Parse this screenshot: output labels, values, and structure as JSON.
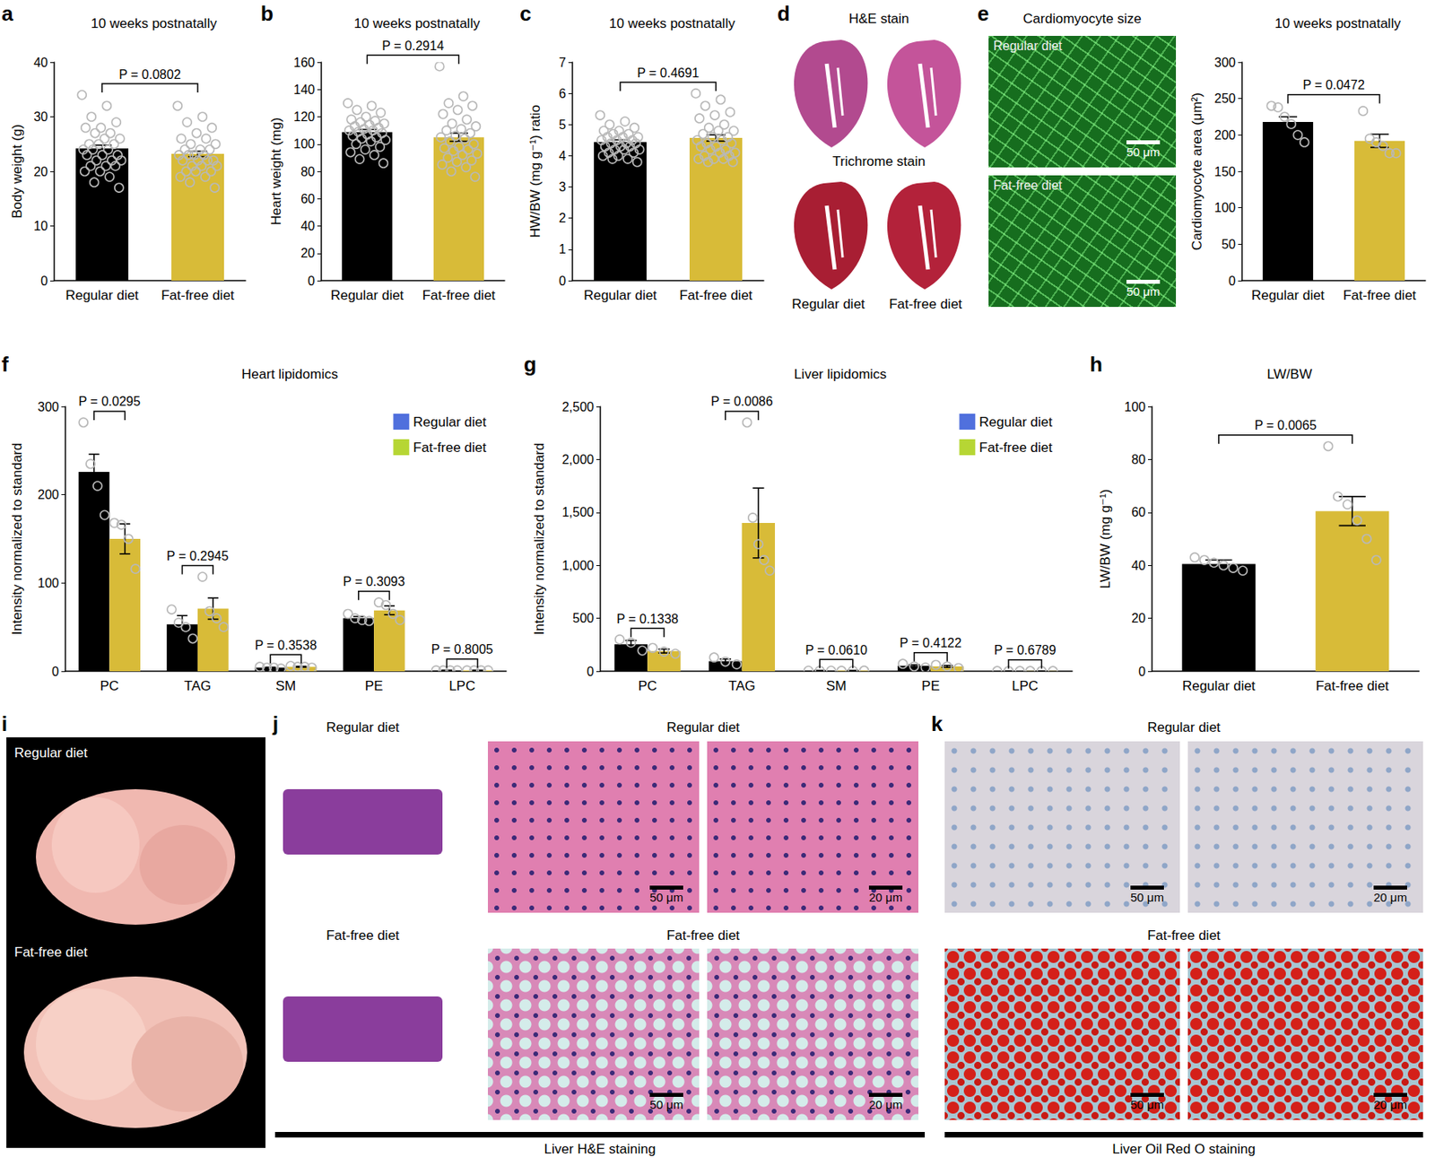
{
  "chart_data": [
    {
      "panel": "a",
      "type": "bar",
      "title": "10 weeks postnatally",
      "categories": [
        "Regular diet",
        "Fat-free diet"
      ],
      "values": [
        24.2,
        23.2
      ],
      "errors": [
        0.6,
        0.5
      ],
      "points": [
        [
          34,
          32,
          30,
          29,
          28,
          28,
          27,
          27,
          26,
          26,
          25,
          25,
          25,
          24,
          24,
          24,
          23,
          23,
          23,
          22,
          22,
          22,
          21,
          21,
          21,
          20,
          20,
          19,
          18,
          17
        ],
        [
          32,
          30,
          29,
          28,
          27,
          26,
          26,
          25,
          25,
          24,
          24,
          24,
          23,
          23,
          23,
          23,
          22,
          22,
          22,
          22,
          21,
          21,
          21,
          20,
          20,
          20,
          19,
          19,
          18,
          17
        ]
      ],
      "colors": [
        "#000000",
        "#d8bb38"
      ],
      "ylabel": "Body weight (g)",
      "ylim": [
        0,
        40
      ],
      "yticks": [
        0,
        10,
        20,
        30,
        40
      ],
      "grid": false,
      "annotations": [
        "P = 0.0802"
      ]
    },
    {
      "panel": "b",
      "type": "bar",
      "title": "10 weeks postnatally",
      "categories": [
        "Regular diet",
        "Fat-free diet"
      ],
      "values": [
        108.7,
        105
      ],
      "errors": [
        2,
        3
      ],
      "points": [
        [
          130,
          128,
          125,
          123,
          120,
          118,
          117,
          116,
          115,
          114,
          113,
          112,
          111,
          110,
          110,
          109,
          108,
          107,
          106,
          105,
          104,
          103,
          102,
          100,
          98,
          96,
          94,
          92,
          89,
          86
        ],
        [
          157,
          135,
          130,
          128,
          125,
          122,
          118,
          115,
          113,
          111,
          110,
          108,
          106,
          105,
          104,
          102,
          100,
          98,
          97,
          96,
          95,
          93,
          92,
          90,
          88,
          87,
          85,
          83,
          80,
          76
        ]
      ],
      "colors": [
        "#000000",
        "#d8bb38"
      ],
      "ylabel": "Heart weight (mg)",
      "ylim": [
        0,
        160
      ],
      "yticks": [
        0,
        20,
        40,
        60,
        80,
        100,
        120,
        140,
        160
      ],
      "grid": false,
      "annotations": [
        "P = 0.2914"
      ]
    },
    {
      "panel": "c",
      "type": "bar",
      "title": "10 weeks postnatally",
      "categories": [
        "Regular diet",
        "Fat-free diet"
      ],
      "values": [
        4.44,
        4.57
      ],
      "errors": [
        0.07,
        0.1
      ],
      "points": [
        [
          5.3,
          5.1,
          5.0,
          4.9,
          4.8,
          4.8,
          4.7,
          4.7,
          4.6,
          4.6,
          4.6,
          4.5,
          4.5,
          4.5,
          4.4,
          4.4,
          4.4,
          4.3,
          4.3,
          4.3,
          4.2,
          4.2,
          4.2,
          4.1,
          4.1,
          4.0,
          4.0,
          3.9,
          3.9,
          3.8
        ],
        [
          6.0,
          5.8,
          5.6,
          5.4,
          5.3,
          5.2,
          5.0,
          4.9,
          4.8,
          4.8,
          4.7,
          4.6,
          4.6,
          4.5,
          4.5,
          4.4,
          4.4,
          4.3,
          4.3,
          4.2,
          4.2,
          4.1,
          4.1,
          4.0,
          4.0,
          3.9,
          3.9,
          3.9,
          3.8,
          3.8
        ]
      ],
      "colors": [
        "#000000",
        "#d8bb38"
      ],
      "ylabel": "HW/BW (mg g⁻¹) ratio",
      "ylim": [
        0,
        7
      ],
      "yticks": [
        0,
        1,
        2,
        3,
        4,
        5,
        6,
        7
      ],
      "grid": false,
      "annotations": [
        "P = 0.4691"
      ]
    },
    {
      "type": "bar",
      "title": "10 weeks postnatally",
      "categories": [
        "Regular diet",
        "Fat-free diet"
      ],
      "values": [
        218,
        192
      ],
      "errors": [
        7,
        9
      ],
      "points": [
        [
          240,
          238,
          225,
          215,
          200,
          190
        ],
        [
          233,
          195,
          190,
          185,
          175,
          175
        ]
      ],
      "colors": [
        "#000000",
        "#d8bb38"
      ],
      "ylabel": "Cardiomyocyte area (μm²)",
      "ylim": [
        0,
        300
      ],
      "yticks": [
        0,
        50,
        100,
        150,
        200,
        250,
        300
      ],
      "grid": false,
      "annotations": [
        "P = 0.0472"
      ]
    },
    {
      "panel": "f",
      "type": "bar",
      "title": "Heart lipidomics",
      "categories": [
        "PC",
        "TAG",
        "SM",
        "PE",
        "LPC"
      ],
      "series": [
        {
          "name": "Regular diet",
          "color": "#000000",
          "values": [
            226,
            53,
            4,
            60,
            1
          ],
          "errors": [
            20,
            10,
            0.5,
            2,
            0.2
          ],
          "points": [
            [
              282,
              235,
              210,
              177
            ],
            [
              70,
              55,
              50,
              37
            ],
            [
              5,
              4,
              4,
              3
            ],
            [
              65,
              60,
              58,
              57
            ],
            [
              1,
              1,
              1,
              1
            ]
          ]
        },
        {
          "name": "Fat-free diet",
          "color": "#d8bb38",
          "values": [
            150,
            71,
            5,
            69,
            1
          ],
          "errors": [
            17,
            12,
            0.5,
            5,
            0.2
          ],
          "points": [
            [
              168,
              166,
              150,
              116
            ],
            [
              107,
              68,
              60,
              50
            ],
            [
              6,
              5,
              5,
              4
            ],
            [
              78,
              75,
              65,
              58
            ],
            [
              1,
              1,
              1,
              1
            ]
          ]
        }
      ],
      "ylabel": "Intensity normalized to standard",
      "ylim": [
        0,
        300
      ],
      "yticks": [
        0,
        100,
        200,
        300
      ],
      "grid": false,
      "legend": "top-right",
      "annotations": [
        "P = 0.0295",
        "P = 0.2945",
        "P = 0.3538",
        "P = 0.3093",
        "P = 0.8005"
      ]
    },
    {
      "panel": "g",
      "type": "bar",
      "title": "Liver lipidomics",
      "categories": [
        "PC",
        "TAG",
        "SM",
        "PE",
        "LPC"
      ],
      "series": [
        {
          "name": "Regular diet",
          "color": "#000000",
          "values": [
            255,
            95,
            5,
            50,
            2
          ],
          "errors": [
            35,
            20,
            1,
            10,
            0.5
          ],
          "points": [
            [
              300,
              270,
              195
            ],
            [
              130,
              90,
              65
            ],
            [
              5,
              5,
              5
            ],
            [
              70,
              45,
              35
            ],
            [
              2,
              2,
              2
            ]
          ]
        },
        {
          "name": "Fat-free diet",
          "color": "#d8bb38",
          "values": [
            190,
            1400,
            5,
            45,
            2
          ],
          "errors": [
            18,
            330,
            1,
            9,
            0.5
          ],
          "points": [
            [
              220,
              185,
              165
            ],
            [
              2350,
              1450,
              1200,
              1050,
              950
            ],
            [
              4,
              5,
              6
            ],
            [
              60,
              45,
              30
            ],
            [
              2,
              2,
              2
            ]
          ]
        }
      ],
      "ylabel": "Intensity normalized to standard",
      "ylim": [
        0,
        2500
      ],
      "yticks": [
        0,
        500,
        {
          "value": 1000,
          "label": "1,000"
        },
        {
          "value": 1500,
          "label": "1,500"
        },
        {
          "value": 2000,
          "label": "2,000"
        },
        {
          "value": 2500,
          "label": "2,500"
        }
      ],
      "grid": false,
      "legend": "top-right",
      "annotations": [
        "P = 0.1338",
        "P = 0.0086",
        "P = 0.0610",
        "P = 0.4122",
        "P = 0.6789"
      ]
    },
    {
      "panel": "h",
      "type": "bar",
      "title": "LW/BW",
      "categories": [
        "Regular diet",
        "Fat-free diet"
      ],
      "values": [
        40.5,
        60.5
      ],
      "errors": [
        1.5,
        5.5
      ],
      "points": [
        [
          43,
          42,
          41,
          40,
          39,
          38
        ],
        [
          85,
          66,
          63,
          57,
          50,
          42
        ]
      ],
      "colors": [
        "#000000",
        "#d8bb38"
      ],
      "ylabel": "LW/BW (mg g⁻¹)",
      "ylim": [
        0,
        100
      ],
      "yticks": [
        0,
        20,
        40,
        60,
        80,
        100
      ],
      "grid": false,
      "annotations": [
        "P = 0.0065"
      ]
    }
  ],
  "image_panels": [
    {
      "panel": "d",
      "stains": [
        "H&E stain",
        "Trichrome stain"
      ],
      "groups": [
        "Regular diet",
        "Fat-free diet"
      ]
    },
    {
      "panel": "e",
      "title": "Cardiomyocyte size",
      "groups": [
        "Regular diet",
        "Fat-free diet"
      ],
      "scale_bar": "50 μm"
    },
    {
      "panel": "i",
      "groups": [
        "Regular diet",
        "Fat-free diet"
      ]
    },
    {
      "panel": "j",
      "groups": [
        "Regular diet",
        "Fat-free diet"
      ],
      "scale_bars": [
        "50 μm",
        "20 μm"
      ],
      "caption": "Liver H&E staining"
    },
    {
      "panel": "k",
      "groups": [
        "Regular diet",
        "Fat-free diet"
      ],
      "scale_bars": [
        "50 μm",
        "20 μm"
      ],
      "caption": "Liver Oil Red O staining"
    }
  ]
}
